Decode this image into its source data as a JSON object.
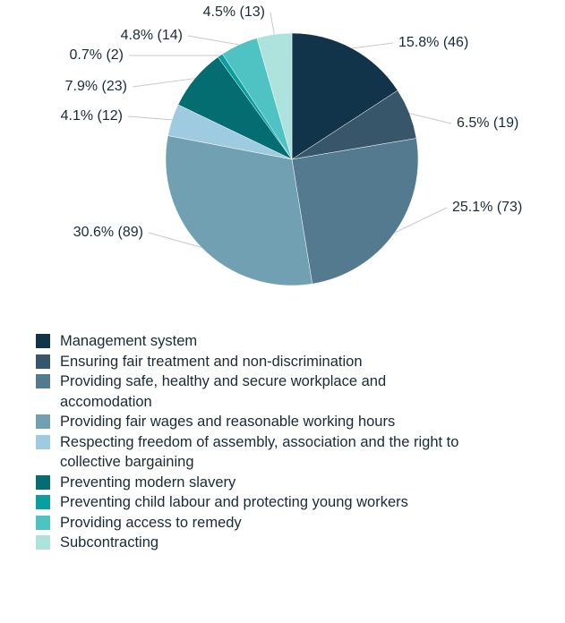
{
  "chart_data": {
    "type": "pie",
    "categories": [
      "Management system",
      "Ensuring fair treatment and non-discrimination",
      "Providing safe, healthy and secure workplace and accomodation",
      "Providing fair wages and reasonable working hours",
      "Respecting freedom of assembly, association and the right to collective bargaining",
      "Preventing modern slavery",
      "Preventing child labour and protecting young workers",
      "Providing access to remedy",
      "Subcontracting"
    ],
    "values": [
      46,
      19,
      73,
      89,
      12,
      23,
      2,
      14,
      13
    ],
    "value_labels": [
      "15.8% (46)",
      "6.5% (19)",
      "25.1% (73)",
      "30.6% (89)",
      "4.1% (12)",
      "7.9% (23)",
      "0.7% (2)",
      "4.8% (14)",
      "4.5% (13)"
    ],
    "colors": [
      "#12344a",
      "#37566a",
      "#537a8e",
      "#72a0b3",
      "#9fcbe0",
      "#036d72",
      "#0a9ea0",
      "#4fc3c3",
      "#aee3dd"
    ],
    "legend": "bottom"
  }
}
